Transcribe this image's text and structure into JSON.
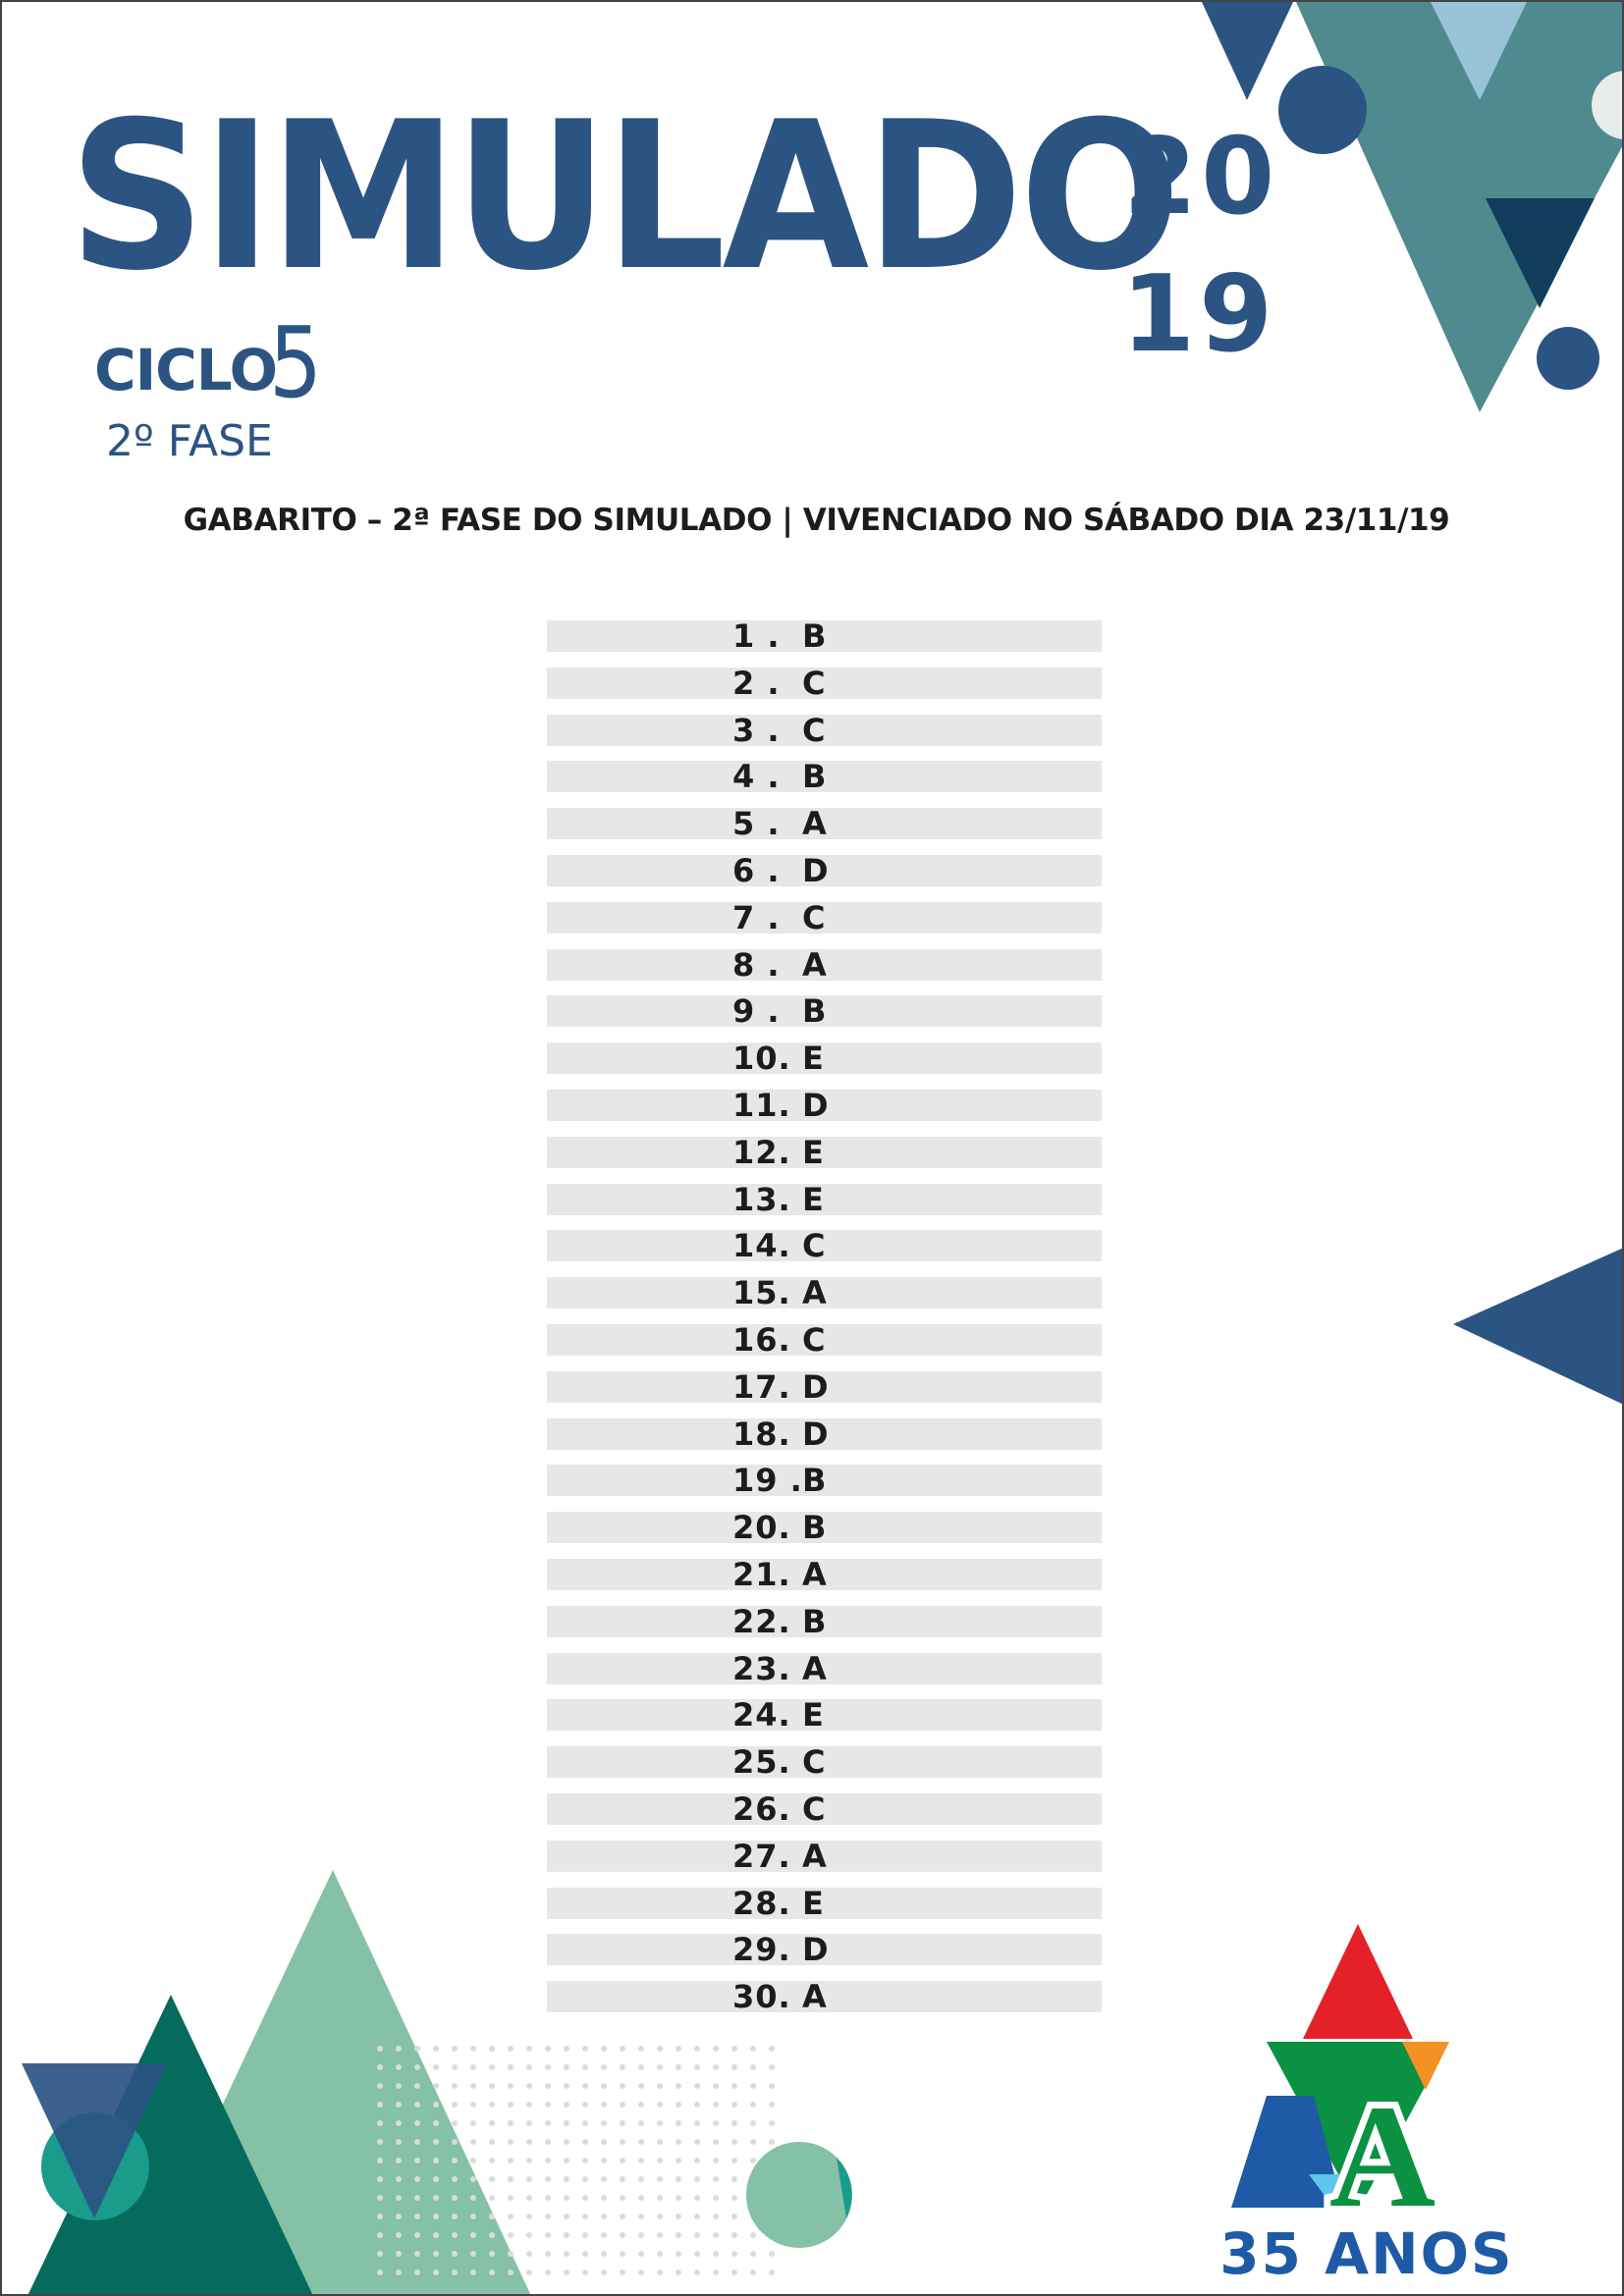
{
  "header": {
    "title": "SIMULADO",
    "year_top": "20",
    "year_bottom": "19",
    "ciclo_label": "CICLO",
    "ciclo_number": "5",
    "fase": "2º FASE"
  },
  "heading": "GABARITO – 2ª FASE DO SIMULADO | VIVENCIADO NO SÁBADO DIA 23/11/19",
  "answers": [
    {
      "q": "1 .",
      "a": "B"
    },
    {
      "q": "2 .",
      "a": "C"
    },
    {
      "q": "3 .",
      "a": "C"
    },
    {
      "q": "4 .",
      "a": "B"
    },
    {
      "q": "5 .",
      "a": "A"
    },
    {
      "q": "6 .",
      "a": "D"
    },
    {
      "q": "7 .",
      "a": "C"
    },
    {
      "q": "8 .",
      "a": "A"
    },
    {
      "q": "9 .",
      "a": "B"
    },
    {
      "q": "10.",
      "a": "E"
    },
    {
      "q": "11.",
      "a": "D"
    },
    {
      "q": "12.",
      "a": "E"
    },
    {
      "q": "13.",
      "a": "E"
    },
    {
      "q": "14.",
      "a": "C"
    },
    {
      "q": "15.",
      "a": "A"
    },
    {
      "q": "16.",
      "a": "C"
    },
    {
      "q": "17.",
      "a": "D"
    },
    {
      "q": "18.",
      "a": "D"
    },
    {
      "q": "19 .",
      "a": "B"
    },
    {
      "q": "20.",
      "a": "B"
    },
    {
      "q": "21.",
      "a": "A"
    },
    {
      "q": "22.",
      "a": "B"
    },
    {
      "q": "23.",
      "a": "A"
    },
    {
      "q": "24.",
      "a": "E"
    },
    {
      "q": "25.",
      "a": "C"
    },
    {
      "q": "26.",
      "a": "C"
    },
    {
      "q": "27.",
      "a": "A"
    },
    {
      "q": "28.",
      "a": "E"
    },
    {
      "q": "29.",
      "a": "D"
    },
    {
      "q": "30.",
      "a": "A"
    }
  ],
  "logo": {
    "letter": "A",
    "caption": "35 ANOS"
  },
  "colors": {
    "brand_blue": "#2b5483",
    "teal": "#4f8a8f",
    "mint": "#85c1a6",
    "dark_green": "#056b5c",
    "row_gray": "#e6e7e9",
    "logo_red": "#e42128",
    "logo_green": "#0a9142",
    "logo_orange": "#f39222",
    "logo_blue": "#1f5aa6",
    "logo_cyan": "#5cc6ee"
  }
}
